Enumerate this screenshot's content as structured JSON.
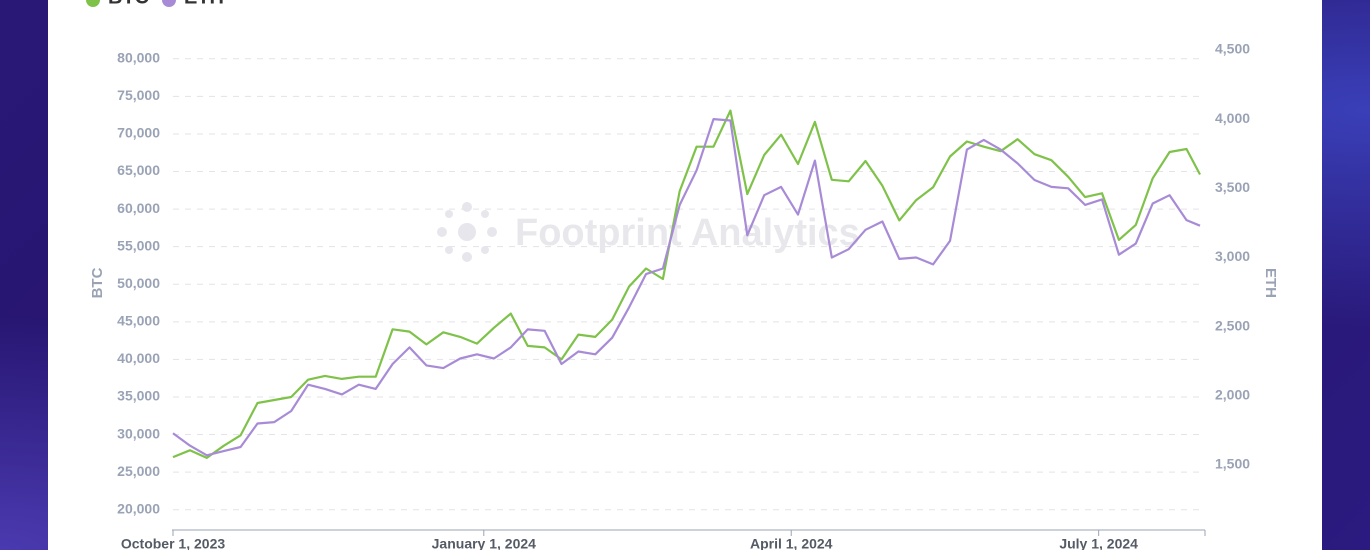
{
  "chart_data": {
    "type": "line",
    "watermark": "Footprint Analytics",
    "y_label": "BTC",
    "y2_label": "ETH",
    "legend": "top-left",
    "grid": true,
    "x": [
      "2023-10-01",
      "2023-10-06",
      "2023-10-11",
      "2023-10-16",
      "2023-10-21",
      "2023-10-26",
      "2023-10-31",
      "2023-11-05",
      "2023-11-10",
      "2023-11-15",
      "2023-11-20",
      "2023-11-25",
      "2023-11-30",
      "2023-12-05",
      "2023-12-10",
      "2023-12-15",
      "2023-12-20",
      "2023-12-25",
      "2023-12-30",
      "2024-01-04",
      "2024-01-09",
      "2024-01-14",
      "2024-01-19",
      "2024-01-24",
      "2024-01-29",
      "2024-02-03",
      "2024-02-08",
      "2024-02-13",
      "2024-02-18",
      "2024-02-23",
      "2024-02-28",
      "2024-03-04",
      "2024-03-09",
      "2024-03-14",
      "2024-03-19",
      "2024-03-24",
      "2024-03-29",
      "2024-04-03",
      "2024-04-08",
      "2024-04-13",
      "2024-04-18",
      "2024-04-23",
      "2024-04-28",
      "2024-05-03",
      "2024-05-08",
      "2024-05-13",
      "2024-05-18",
      "2024-05-23",
      "2024-05-28",
      "2024-06-02",
      "2024-06-07",
      "2024-06-12",
      "2024-06-17",
      "2024-06-22",
      "2024-06-27",
      "2024-07-02",
      "2024-07-07",
      "2024-07-12",
      "2024-07-17",
      "2024-07-22",
      "2024-07-27",
      "2024-07-31"
    ],
    "xlim": [
      "2023-10-01",
      "2024-07-31"
    ],
    "xticks": [
      {
        "value": "2023-10-01",
        "label": "October 1, 2023"
      },
      {
        "value": "2024-01-01",
        "label": "January 1, 2024"
      },
      {
        "value": "2024-04-01",
        "label": "April 1, 2024"
      },
      {
        "value": "2024-07-01",
        "label": "July 1, 2024"
      }
    ],
    "ylim": [
      17300,
      82500
    ],
    "yticks": [
      {
        "value": 20000,
        "label": "20,000"
      },
      {
        "value": 25000,
        "label": "25,000"
      },
      {
        "value": 30000,
        "label": "30,000"
      },
      {
        "value": 35000,
        "label": "35,000"
      },
      {
        "value": 40000,
        "label": "40,000"
      },
      {
        "value": 45000,
        "label": "45,000"
      },
      {
        "value": 50000,
        "label": "50,000"
      },
      {
        "value": 55000,
        "label": "55,000"
      },
      {
        "value": 60000,
        "label": "60,000"
      },
      {
        "value": 65000,
        "label": "65,000"
      },
      {
        "value": 70000,
        "label": "70,000"
      },
      {
        "value": 75000,
        "label": "75,000"
      },
      {
        "value": 80000,
        "label": "80,000"
      }
    ],
    "y2lim": [
      1030,
      4572
    ],
    "y2ticks": [
      {
        "value": 1500,
        "label": "1,500"
      },
      {
        "value": 2000,
        "label": "2,000"
      },
      {
        "value": 2500,
        "label": "2,500"
      },
      {
        "value": 3000,
        "label": "3,000"
      },
      {
        "value": 3500,
        "label": "3,500"
      },
      {
        "value": 4000,
        "label": "4,000"
      },
      {
        "value": 4500,
        "label": "4,500"
      }
    ],
    "series": [
      {
        "name": "BTC",
        "color": "#7fc24a",
        "axis": "y",
        "values": [
          27000,
          27900,
          26900,
          28500,
          29900,
          34200,
          34600,
          35000,
          37300,
          37800,
          37400,
          37700,
          37700,
          44000,
          43700,
          42000,
          43600,
          43000,
          42100,
          44200,
          46100,
          41800,
          41600,
          40000,
          43300,
          43000,
          45300,
          49700,
          52100,
          50700,
          62400,
          68300,
          68300,
          73100,
          62000,
          67200,
          69900,
          66000,
          71600,
          63900,
          63700,
          66400,
          63100,
          58500,
          61200,
          62900,
          67000,
          69000,
          68300,
          67700,
          69300,
          67300,
          66500,
          64300,
          61600,
          62100,
          55900,
          57900,
          64100,
          67600,
          68000,
          64600
        ]
      },
      {
        "name": "ETH",
        "color": "#a88bd6",
        "axis": "y2",
        "values": [
          1730,
          1640,
          1570,
          1600,
          1630,
          1800,
          1810,
          1890,
          2080,
          2050,
          2010,
          2080,
          2050,
          2230,
          2350,
          2220,
          2200,
          2270,
          2300,
          2270,
          2350,
          2480,
          2470,
          2230,
          2320,
          2300,
          2420,
          2640,
          2880,
          2920,
          3380,
          3630,
          4000,
          3990,
          3160,
          3450,
          3510,
          3310,
          3700,
          3000,
          3060,
          3200,
          3260,
          2990,
          3000,
          2950,
          3120,
          3780,
          3850,
          3780,
          3680,
          3560,
          3510,
          3500,
          3380,
          3420,
          3020,
          3100,
          3390,
          3450,
          3270,
          3230
        ]
      }
    ]
  }
}
